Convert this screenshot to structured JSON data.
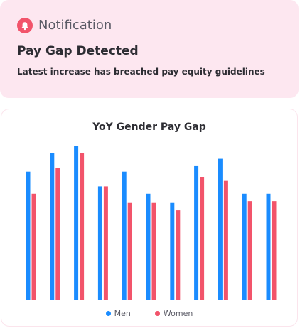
{
  "notification": {
    "label": "Notification",
    "icon": "bell-icon",
    "title": "Pay Gap Detected",
    "message": "Latest increase has breached pay equity guidelines",
    "accent_color": "#f2546b",
    "background_color": "#fde7f0"
  },
  "chart_data": {
    "type": "bar",
    "title": "YoY Gender Pay Gap",
    "xlabel": "",
    "ylabel": "",
    "grid": false,
    "legend_position": "bottom",
    "categories": [
      "",
      "",
      "",
      "",
      "",
      "",
      "",
      "",
      "",
      "",
      ""
    ],
    "ylim": [
      0,
      100
    ],
    "series": [
      {
        "name": "Men",
        "color": "#1a8cff",
        "values": [
          70,
          80,
          84,
          62,
          70,
          58,
          53,
          73,
          77,
          58,
          58
        ]
      },
      {
        "name": "Women",
        "color": "#f2546b",
        "values": [
          58,
          72,
          80,
          62,
          53,
          53,
          49,
          67,
          65,
          54,
          54
        ]
      }
    ]
  }
}
